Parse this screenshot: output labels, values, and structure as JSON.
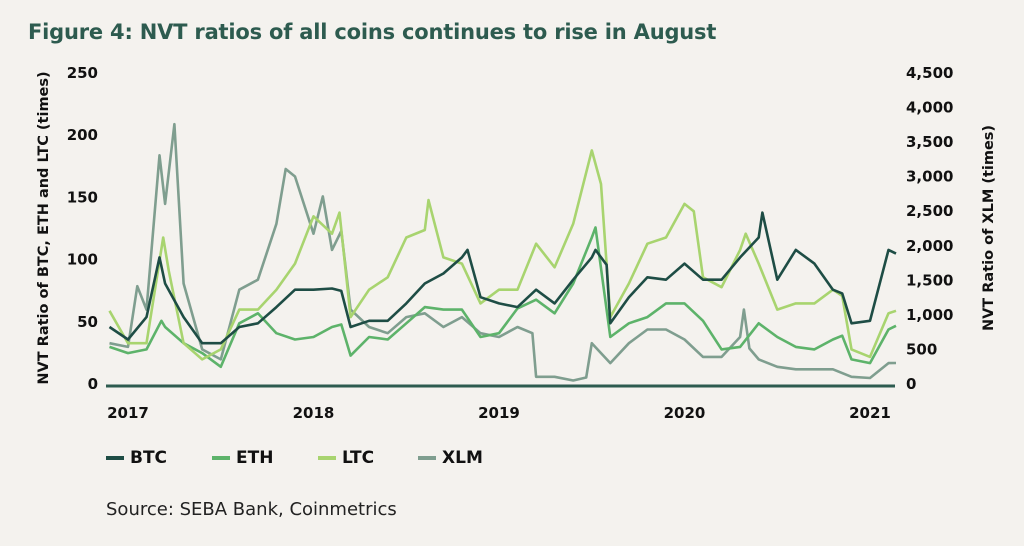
{
  "title": "Figure 4: NVT ratios of all coins continues to rise in August",
  "source": "Source: SEBA Bank, Coinmetrics",
  "chart_data": {
    "type": "line",
    "title": "Figure 4: NVT ratios of all coins continues to rise in August",
    "ylabel": "NVT Ratio of BTC, ETH and LTC (times)",
    "y2label": "NVT Ratio of XLM (times)",
    "xlim": [
      2016.88,
      2021.14
    ],
    "ylim": [
      0,
      250
    ],
    "y2lim": [
      0,
      4500
    ],
    "x_ticks": [
      "2017",
      "2018",
      "2019",
      "2020",
      "2021"
    ],
    "y_ticks": [
      "0",
      "50",
      "100",
      "150",
      "200",
      "250"
    ],
    "y2_ticks": [
      "0",
      "500",
      "1,000",
      "1,500",
      "2,000",
      "2,500",
      "3,000",
      "3,500",
      "4,000",
      "4,500"
    ],
    "grid": false,
    "legend": "bottom-left",
    "series": [
      {
        "name": "BTC",
        "axis": "left",
        "color": "#1e4d45",
        "points": [
          [
            2016.9,
            45
          ],
          [
            2017.0,
            35
          ],
          [
            2017.1,
            53
          ],
          [
            2017.17,
            101
          ],
          [
            2017.2,
            80
          ],
          [
            2017.3,
            53
          ],
          [
            2017.4,
            32
          ],
          [
            2017.5,
            32
          ],
          [
            2017.6,
            45
          ],
          [
            2017.7,
            48
          ],
          [
            2017.8,
            61
          ],
          [
            2017.9,
            75
          ],
          [
            2018.0,
            75
          ],
          [
            2018.1,
            76
          ],
          [
            2018.15,
            74
          ],
          [
            2018.2,
            45
          ],
          [
            2018.3,
            50
          ],
          [
            2018.4,
            50
          ],
          [
            2018.5,
            64
          ],
          [
            2018.6,
            80
          ],
          [
            2018.7,
            88
          ],
          [
            2018.8,
            101
          ],
          [
            2018.83,
            107
          ],
          [
            2018.9,
            69
          ],
          [
            2019.0,
            64
          ],
          [
            2019.1,
            61
          ],
          [
            2019.2,
            75
          ],
          [
            2019.3,
            64
          ],
          [
            2019.4,
            83
          ],
          [
            2019.5,
            101
          ],
          [
            2019.52,
            107
          ],
          [
            2019.58,
            95
          ],
          [
            2019.6,
            48
          ],
          [
            2019.7,
            69
          ],
          [
            2019.8,
            85
          ],
          [
            2019.9,
            83
          ],
          [
            2020.0,
            96
          ],
          [
            2020.1,
            83
          ],
          [
            2020.2,
            83
          ],
          [
            2020.3,
            101
          ],
          [
            2020.4,
            117
          ],
          [
            2020.42,
            137
          ],
          [
            2020.5,
            83
          ],
          [
            2020.6,
            107
          ],
          [
            2020.7,
            96
          ],
          [
            2020.8,
            75
          ],
          [
            2020.85,
            72
          ],
          [
            2020.9,
            48
          ],
          [
            2021.0,
            50
          ],
          [
            2021.1,
            107
          ],
          [
            2021.14,
            104
          ]
        ]
      },
      {
        "name": "ETH",
        "axis": "left",
        "color": "#5db36a",
        "points": [
          [
            2016.9,
            29
          ],
          [
            2017.0,
            24
          ],
          [
            2017.1,
            27
          ],
          [
            2017.18,
            50
          ],
          [
            2017.2,
            45
          ],
          [
            2017.3,
            32
          ],
          [
            2017.4,
            24
          ],
          [
            2017.5,
            13
          ],
          [
            2017.6,
            48
          ],
          [
            2017.7,
            56
          ],
          [
            2017.8,
            40
          ],
          [
            2017.9,
            35
          ],
          [
            2018.0,
            37
          ],
          [
            2018.1,
            45
          ],
          [
            2018.15,
            47
          ],
          [
            2018.2,
            22
          ],
          [
            2018.3,
            37
          ],
          [
            2018.4,
            35
          ],
          [
            2018.5,
            48
          ],
          [
            2018.6,
            61
          ],
          [
            2018.7,
            59
          ],
          [
            2018.8,
            59
          ],
          [
            2018.9,
            37
          ],
          [
            2019.0,
            40
          ],
          [
            2019.1,
            60
          ],
          [
            2019.2,
            67
          ],
          [
            2019.3,
            56
          ],
          [
            2019.4,
            80
          ],
          [
            2019.5,
            117
          ],
          [
            2019.52,
            125
          ],
          [
            2019.6,
            37
          ],
          [
            2019.7,
            48
          ],
          [
            2019.8,
            53
          ],
          [
            2019.9,
            64
          ],
          [
            2020.0,
            64
          ],
          [
            2020.1,
            50
          ],
          [
            2020.2,
            27
          ],
          [
            2020.3,
            29
          ],
          [
            2020.4,
            48
          ],
          [
            2020.5,
            37
          ],
          [
            2020.6,
            29
          ],
          [
            2020.7,
            27
          ],
          [
            2020.8,
            35
          ],
          [
            2020.85,
            38
          ],
          [
            2020.9,
            19
          ],
          [
            2021.0,
            16
          ],
          [
            2021.1,
            43
          ],
          [
            2021.14,
            46
          ]
        ]
      },
      {
        "name": "LTC",
        "axis": "left",
        "color": "#a8d46f",
        "points": [
          [
            2016.9,
            58
          ],
          [
            2017.0,
            32
          ],
          [
            2017.1,
            32
          ],
          [
            2017.19,
            117
          ],
          [
            2017.22,
            90
          ],
          [
            2017.3,
            32
          ],
          [
            2017.4,
            19
          ],
          [
            2017.5,
            27
          ],
          [
            2017.6,
            59
          ],
          [
            2017.7,
            59
          ],
          [
            2017.8,
            75
          ],
          [
            2017.9,
            96
          ],
          [
            2018.0,
            134
          ],
          [
            2018.1,
            120
          ],
          [
            2018.14,
            137
          ],
          [
            2018.2,
            53
          ],
          [
            2018.3,
            75
          ],
          [
            2018.4,
            85
          ],
          [
            2018.5,
            117
          ],
          [
            2018.6,
            123
          ],
          [
            2018.62,
            147
          ],
          [
            2018.7,
            101
          ],
          [
            2018.8,
            96
          ],
          [
            2018.9,
            64
          ],
          [
            2019.0,
            75
          ],
          [
            2019.1,
            75
          ],
          [
            2019.2,
            112
          ],
          [
            2019.3,
            93
          ],
          [
            2019.4,
            128
          ],
          [
            2019.5,
            187
          ],
          [
            2019.55,
            160
          ],
          [
            2019.6,
            53
          ],
          [
            2019.7,
            80
          ],
          [
            2019.8,
            112
          ],
          [
            2019.9,
            117
          ],
          [
            2020.0,
            144
          ],
          [
            2020.05,
            138
          ],
          [
            2020.1,
            85
          ],
          [
            2020.2,
            77
          ],
          [
            2020.3,
            107
          ],
          [
            2020.33,
            120
          ],
          [
            2020.4,
            96
          ],
          [
            2020.5,
            59
          ],
          [
            2020.6,
            64
          ],
          [
            2020.7,
            64
          ],
          [
            2020.8,
            75
          ],
          [
            2020.85,
            70
          ],
          [
            2020.9,
            27
          ],
          [
            2021.0,
            21
          ],
          [
            2021.1,
            56
          ],
          [
            2021.14,
            58
          ]
        ]
      },
      {
        "name": "XLM",
        "axis": "right",
        "color": "#7f9e8f",
        "points": [
          [
            2016.9,
            576
          ],
          [
            2017.0,
            522
          ],
          [
            2017.05,
            1400
          ],
          [
            2017.1,
            1062
          ],
          [
            2017.17,
            3294
          ],
          [
            2017.2,
            2592
          ],
          [
            2017.25,
            3744
          ],
          [
            2017.3,
            1440
          ],
          [
            2017.4,
            486
          ],
          [
            2017.5,
            342
          ],
          [
            2017.6,
            1350
          ],
          [
            2017.7,
            1494
          ],
          [
            2017.8,
            2304
          ],
          [
            2017.85,
            3096
          ],
          [
            2017.9,
            2988
          ],
          [
            2018.0,
            2160
          ],
          [
            2018.05,
            2700
          ],
          [
            2018.1,
            1926
          ],
          [
            2018.15,
            2200
          ],
          [
            2018.2,
            1062
          ],
          [
            2018.3,
            810
          ],
          [
            2018.4,
            720
          ],
          [
            2018.5,
            954
          ],
          [
            2018.6,
            1008
          ],
          [
            2018.7,
            810
          ],
          [
            2018.8,
            954
          ],
          [
            2018.9,
            720
          ],
          [
            2019.0,
            666
          ],
          [
            2019.1,
            810
          ],
          [
            2019.18,
            720
          ],
          [
            2019.2,
            90
          ],
          [
            2019.3,
            90
          ],
          [
            2019.4,
            36
          ],
          [
            2019.47,
            80
          ],
          [
            2019.5,
            576
          ],
          [
            2019.6,
            288
          ],
          [
            2019.7,
            576
          ],
          [
            2019.8,
            774
          ],
          [
            2019.9,
            774
          ],
          [
            2020.0,
            630
          ],
          [
            2020.1,
            378
          ],
          [
            2020.2,
            378
          ],
          [
            2020.3,
            666
          ],
          [
            2020.32,
            1062
          ],
          [
            2020.35,
            500
          ],
          [
            2020.4,
            342
          ],
          [
            2020.5,
            234
          ],
          [
            2020.6,
            198
          ],
          [
            2020.7,
            198
          ],
          [
            2020.8,
            198
          ],
          [
            2020.9,
            90
          ],
          [
            2021.0,
            72
          ],
          [
            2021.1,
            288
          ],
          [
            2021.14,
            290
          ]
        ]
      }
    ]
  }
}
